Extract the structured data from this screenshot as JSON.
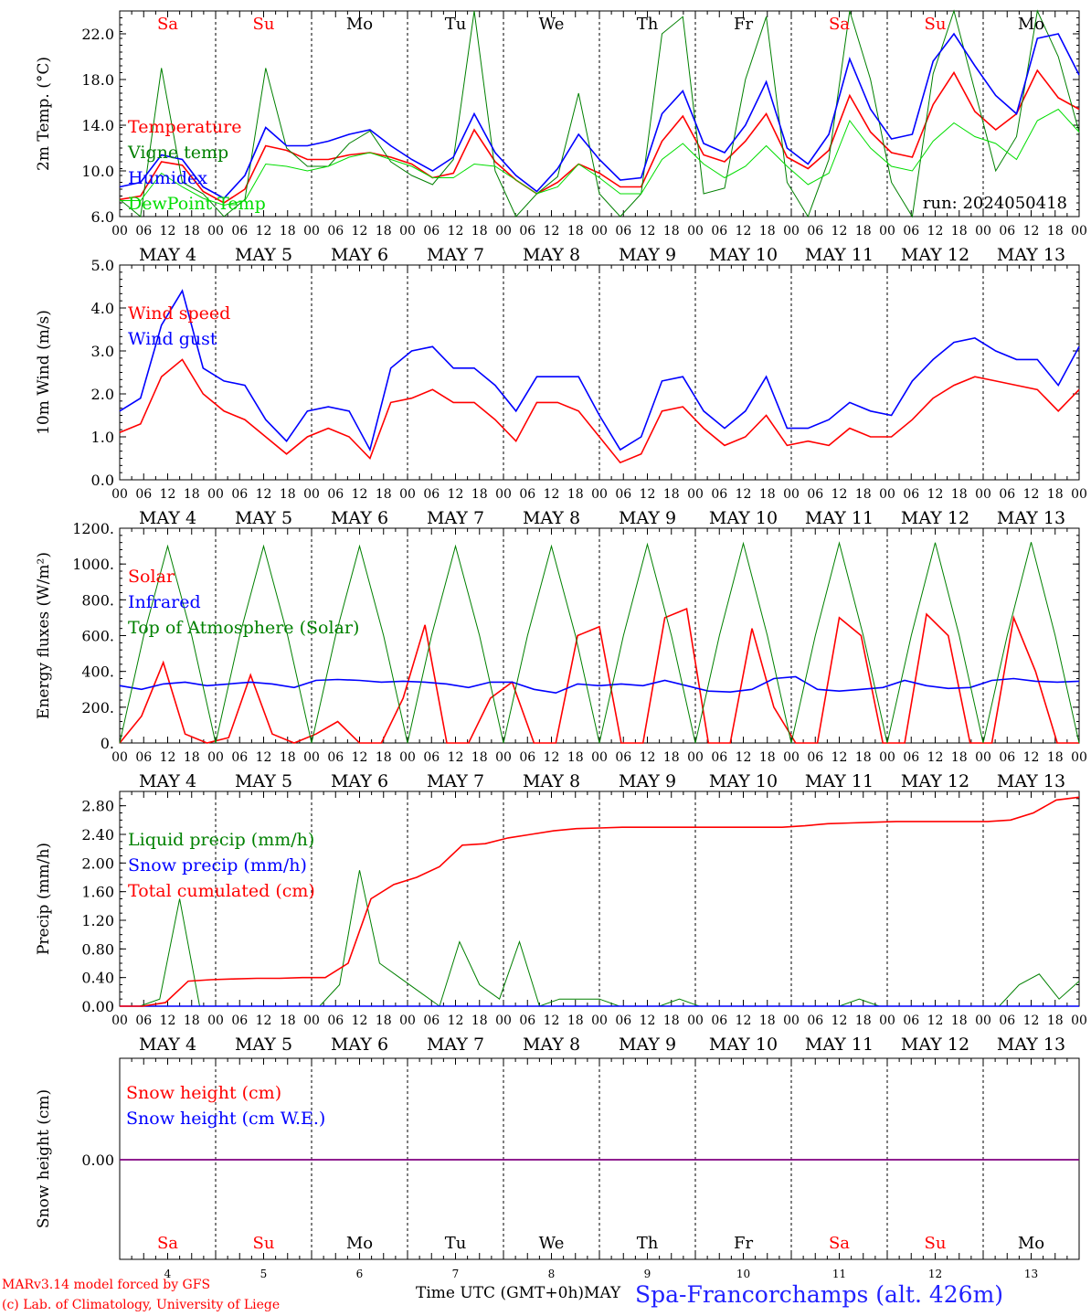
{
  "run_label": "run: 2024050418",
  "day_labels": [
    "Sa",
    "Su",
    "Mo",
    "Tu",
    "We",
    "Th",
    "Fr",
    "Sa",
    "Su",
    "Mo"
  ],
  "day_colors": [
    "#ff0000",
    "#ff0000",
    "#000000",
    "#000000",
    "#000000",
    "#000000",
    "#000000",
    "#ff0000",
    "#ff0000",
    "#000000"
  ],
  "date_labels": [
    "MAY  4",
    "MAY  5",
    "MAY  6",
    "MAY  7",
    "MAY  8",
    "MAY  9",
    "MAY 10",
    "MAY 11",
    "MAY 12",
    "MAY 13"
  ],
  "bottom_day_numbers": [
    "4",
    "5",
    "6",
    "7",
    "8",
    "9",
    "10",
    "11",
    "12",
    "13"
  ],
  "hour_ticks": [
    "00",
    "06",
    "12",
    "18"
  ],
  "footer": {
    "line1": "MARv3.14 model forced by GFS",
    "line2": "(c) Lab. of Climatology, University of Liege",
    "xlabel": "Time UTC (GMT+0h)",
    "month": "MAY",
    "station": "Spa-Francorchamps (alt. 426m)"
  },
  "colors": {
    "red": "#ff0000",
    "green": "#008000",
    "blue": "#0000ff",
    "lime": "#00dd00",
    "purple": "#800080"
  },
  "chart_data": [
    {
      "type": "line",
      "ylabel": "2m Temp. (°C)",
      "ylim": [
        6,
        24
      ],
      "yticks": [
        "6.0",
        "10.0",
        "14.0",
        "18.0",
        "22.0"
      ],
      "x": "hours since MAY 4 00 UTC, 6-hourly samples 0..240",
      "series": [
        {
          "name": "Temperature",
          "color": "red",
          "values": [
            7.5,
            7.8,
            10.8,
            10.5,
            8.2,
            7.2,
            8.4,
            12.2,
            11.8,
            11.0,
            11.0,
            11.4,
            11.6,
            11.2,
            10.6,
            9.4,
            9.8,
            13.6,
            10.8,
            9.2,
            8.0,
            9.0,
            10.6,
            9.8,
            8.6,
            8.6,
            12.6,
            14.8,
            11.4,
            10.8,
            12.6,
            15.0,
            11.2,
            10.2,
            11.8,
            16.6,
            13.4,
            11.6,
            11.2,
            15.8,
            18.6,
            15.2,
            13.6,
            15.0,
            18.8,
            16.4,
            15.4
          ]
        },
        {
          "name": "Vigne temp",
          "color": "green",
          "values": [
            7.5,
            6.0,
            19.0,
            9.0,
            8.0,
            6.0,
            7.5,
            19.0,
            12.0,
            10.4,
            10.4,
            12.4,
            13.5,
            10.8,
            9.6,
            8.8,
            11.0,
            24.0,
            10.0,
            6.0,
            8.0,
            9.5,
            16.8,
            8.0,
            6.0,
            8.0,
            22.0,
            23.5,
            8.0,
            8.5,
            18.0,
            23.5,
            9.0,
            6.0,
            11.0,
            24.0,
            18.0,
            9.0,
            6.0,
            18.5,
            24.0,
            17.0,
            10.0,
            13.0,
            24.0,
            20.0,
            13.4
          ]
        },
        {
          "name": "Humidex",
          "color": "blue",
          "values": [
            8.6,
            9.0,
            11.4,
            11.0,
            8.6,
            7.6,
            9.6,
            13.8,
            12.2,
            12.2,
            12.6,
            13.2,
            13.6,
            12.2,
            11.0,
            10.0,
            11.2,
            15.0,
            11.6,
            9.6,
            8.2,
            10.2,
            13.2,
            11.0,
            9.2,
            9.4,
            15.0,
            17.0,
            12.4,
            11.6,
            14.0,
            17.8,
            12.0,
            10.6,
            13.2,
            19.8,
            15.4,
            12.8,
            13.2,
            19.6,
            22.0,
            19.2,
            16.6,
            15.0,
            21.6,
            22.0,
            18.4
          ]
        },
        {
          "name": "DewPoint Temp",
          "color": "lime",
          "values": [
            7.4,
            7.4,
            9.8,
            8.6,
            7.6,
            7.0,
            7.4,
            10.6,
            10.4,
            10.0,
            10.4,
            11.2,
            11.6,
            11.0,
            10.4,
            9.4,
            9.4,
            10.6,
            10.4,
            9.2,
            8.0,
            8.6,
            10.6,
            9.4,
            8.0,
            8.0,
            11.0,
            12.4,
            10.6,
            9.4,
            10.4,
            12.2,
            10.4,
            8.8,
            9.8,
            14.4,
            12.0,
            10.4,
            10.0,
            12.6,
            14.2,
            13.0,
            12.4,
            11.0,
            14.4,
            15.4,
            13.4
          ]
        }
      ]
    },
    {
      "type": "line",
      "ylabel": "10m Wind (m/s)",
      "ylim": [
        0,
        5
      ],
      "yticks": [
        "0.0",
        "1.0",
        "2.0",
        "3.0",
        "4.0",
        "5.0"
      ],
      "series": [
        {
          "name": "Wind speed",
          "color": "red",
          "values": [
            1.1,
            1.3,
            2.4,
            2.8,
            2.0,
            1.6,
            1.4,
            1.0,
            0.6,
            1.0,
            1.2,
            1.0,
            0.5,
            1.8,
            1.9,
            2.1,
            1.8,
            1.8,
            1.4,
            0.9,
            1.8,
            1.8,
            1.6,
            1.0,
            0.4,
            0.6,
            1.6,
            1.7,
            1.2,
            0.8,
            1.0,
            1.5,
            0.8,
            0.9,
            0.8,
            1.2,
            1.0,
            1.0,
            1.4,
            1.9,
            2.2,
            2.4,
            2.3,
            2.2,
            2.1,
            1.6,
            2.1
          ]
        },
        {
          "name": "Wind gust",
          "color": "blue",
          "values": [
            1.6,
            1.9,
            3.6,
            4.4,
            2.6,
            2.3,
            2.2,
            1.4,
            0.9,
            1.6,
            1.7,
            1.6,
            0.7,
            2.6,
            3.0,
            3.1,
            2.6,
            2.6,
            2.2,
            1.6,
            2.4,
            2.4,
            2.4,
            1.5,
            0.7,
            1.0,
            2.3,
            2.4,
            1.6,
            1.2,
            1.6,
            2.4,
            1.2,
            1.2,
            1.4,
            1.8,
            1.6,
            1.5,
            2.3,
            2.8,
            3.2,
            3.3,
            3.0,
            2.8,
            2.8,
            2.2,
            3.1
          ]
        }
      ]
    },
    {
      "type": "line",
      "ylabel": "Energy fluxes (W/m²)",
      "ylim": [
        0,
        1200
      ],
      "yticks": [
        "0.",
        "200.",
        "400.",
        "600.",
        "800.",
        "1000.",
        "1200."
      ],
      "series": [
        {
          "name": "Solar",
          "color": "red",
          "values": [
            0,
            150,
            450,
            50,
            0,
            30,
            380,
            50,
            0,
            50,
            120,
            0,
            0,
            250,
            660,
            0,
            0,
            250,
            340,
            0,
            0,
            600,
            650,
            0,
            0,
            700,
            750,
            0,
            0,
            640,
            200,
            0,
            0,
            700,
            600,
            0,
            0,
            720,
            600,
            0,
            0,
            700,
            400,
            0,
            0
          ]
        },
        {
          "name": "Infrared",
          "color": "blue",
          "values": [
            320,
            300,
            330,
            340,
            320,
            330,
            340,
            330,
            310,
            350,
            355,
            350,
            340,
            345,
            340,
            330,
            310,
            340,
            340,
            300,
            280,
            330,
            320,
            330,
            320,
            350,
            320,
            290,
            285,
            300,
            360,
            370,
            300,
            290,
            300,
            310,
            350,
            320,
            305,
            310,
            350,
            360,
            345,
            340,
            345
          ]
        },
        {
          "name": "Top of Atmosphere (Solar)",
          "color": "green",
          "values": [
            0,
            600,
            1100,
            600,
            0,
            600,
            1100,
            600,
            0,
            600,
            1100,
            600,
            0,
            600,
            1100,
            600,
            0,
            600,
            1100,
            600,
            0,
            600,
            1110,
            600,
            0,
            600,
            1115,
            600,
            0,
            600,
            1118,
            600,
            0,
            600,
            1120,
            600,
            0,
            600,
            1122,
            600,
            0
          ]
        }
      ]
    },
    {
      "type": "line",
      "ylabel": "Precip (mm/h)",
      "ylim": [
        0,
        3.0
      ],
      "yticks": [
        "0.00",
        "0.40",
        "0.80",
        "1.20",
        "1.60",
        "2.00",
        "2.40",
        "2.80"
      ],
      "series": [
        {
          "name": "Liquid precip (mm/h)",
          "color": "green",
          "values": [
            0,
            0,
            0.1,
            1.5,
            0,
            0,
            0,
            0,
            0,
            0,
            0,
            0.3,
            1.9,
            0.6,
            0.4,
            0.2,
            0,
            0.9,
            0.3,
            0.1,
            0.9,
            0,
            0.1,
            0.1,
            0.1,
            0,
            0,
            0,
            0.1,
            0,
            0,
            0,
            0,
            0,
            0,
            0,
            0,
            0.1,
            0,
            0,
            0,
            0,
            0,
            0,
            0,
            0.3,
            0.45,
            0.1,
            0.35
          ]
        },
        {
          "name": "Snow precip (mm/h)",
          "color": "blue",
          "values": [
            0,
            0,
            0,
            0,
            0,
            0,
            0,
            0,
            0,
            0,
            0,
            0,
            0,
            0,
            0,
            0,
            0,
            0,
            0,
            0,
            0,
            0,
            0,
            0,
            0,
            0,
            0,
            0,
            0,
            0,
            0,
            0,
            0,
            0,
            0,
            0,
            0,
            0,
            0,
            0,
            0,
            0,
            0,
            0,
            0
          ]
        },
        {
          "name": "Total cumulated (cm)",
          "color": "red",
          "values": [
            0,
            0,
            0.05,
            0.35,
            0.37,
            0.38,
            0.39,
            0.39,
            0.4,
            0.4,
            0.6,
            1.5,
            1.7,
            1.8,
            1.95,
            2.25,
            2.27,
            2.35,
            2.4,
            2.45,
            2.48,
            2.49,
            2.5,
            2.5,
            2.5,
            2.5,
            2.5,
            2.5,
            2.5,
            2.5,
            2.52,
            2.55,
            2.56,
            2.57,
            2.58,
            2.58,
            2.58,
            2.58,
            2.58,
            2.6,
            2.7,
            2.88,
            2.92
          ]
        }
      ]
    },
    {
      "type": "line",
      "ylabel": "Snow height (cm)",
      "ylim": [
        -1,
        1
      ],
      "yticks": [
        "0.00"
      ],
      "series": [
        {
          "name": "Snow height (cm)",
          "color": "red",
          "values": [
            0,
            0
          ]
        },
        {
          "name": "Snow height (cm W.E.)",
          "color": "blue",
          "values": [
            0,
            0
          ]
        }
      ]
    }
  ]
}
